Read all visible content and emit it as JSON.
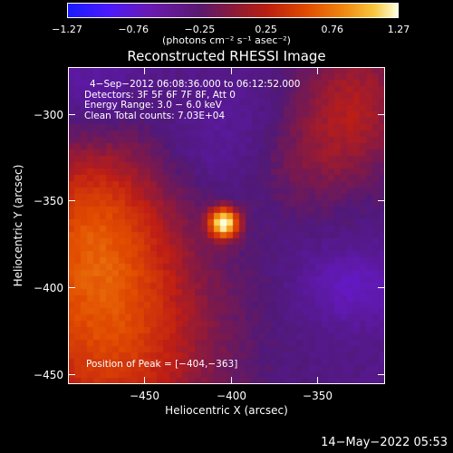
{
  "colorbar": {
    "ticks": [
      "−1.27",
      "−0.76",
      "−0.25",
      "0.25",
      "0.76",
      "1.27"
    ],
    "units_label": "(photons cm⁻² s⁻¹ asec⁻²)"
  },
  "plot": {
    "title": "Reconstructed RHESSI Image",
    "info_lines": [
      "4−Sep−2012 06:08:36.000 to 06:12:52.000",
      "Detectors: 3F 5F 6F 7F 8F, Att 0",
      "Energy Range: 3.0 − 6.0 keV",
      "Clean     Total counts: 7.03E+04"
    ],
    "peak_label": "Position of Peak = [−404,−363]",
    "xlabel": "Heliocentric X (arcsec)",
    "ylabel": "Heliocentric Y (arcsec)"
  },
  "footer_date": "14−May−2022 05:53",
  "chart_data": {
    "type": "heatmap",
    "title": "Reconstructed RHESSI Image",
    "xlabel": "Heliocentric X (arcsec)",
    "ylabel": "Heliocentric Y (arcsec)",
    "xlim": [
      -494,
      -311
    ],
    "ylim": [
      -456,
      -273
    ],
    "xticks": [
      -450,
      -400,
      -350
    ],
    "xtick_labels": [
      "−450",
      "−400",
      "−350"
    ],
    "yticks": [
      -300,
      -350,
      -400,
      -450
    ],
    "ytick_labels": [
      "−300",
      "−350",
      "−400",
      "−450"
    ],
    "colorbar_range": [
      -1.27,
      1.27
    ],
    "peak_position": [
      -404,
      -363
    ],
    "colormap": "purple-red-yellow-white"
  },
  "colors": {
    "background": "#000000",
    "text": "#ffffff",
    "peak": "#ffffe0"
  }
}
